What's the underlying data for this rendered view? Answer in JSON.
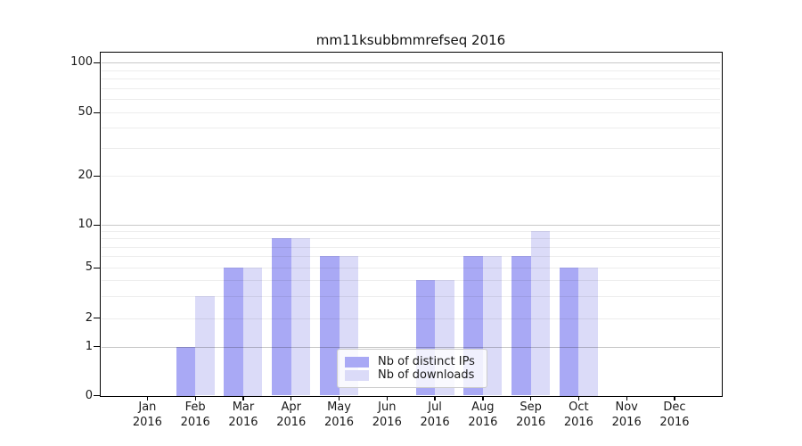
{
  "title": "mm11ksubbmmrefseq 2016",
  "chart_data": {
    "type": "bar",
    "title": "mm11ksubbmmrefseq 2016",
    "x_axis": {
      "year": "2016",
      "months": [
        "Jan",
        "Feb",
        "Mar",
        "Apr",
        "May",
        "Jun",
        "Jul",
        "Aug",
        "Sep",
        "Oct",
        "Nov",
        "Dec"
      ]
    },
    "y_axis": {
      "scale": "log-like",
      "ticks": [
        100,
        50,
        20,
        10,
        5,
        2,
        1,
        0
      ],
      "ylim": [
        0,
        115
      ]
    },
    "grid": {
      "major": [
        1,
        10,
        100
      ],
      "minor": [
        2,
        3,
        4,
        5,
        6,
        7,
        8,
        9,
        20,
        30,
        40,
        50,
        60,
        70,
        80,
        90
      ]
    },
    "series": [
      {
        "name": "Nb of distinct IPs",
        "color": "#a9a9f5",
        "values": [
          0,
          1,
          5,
          8,
          6,
          0,
          4,
          6,
          6,
          5,
          0,
          0
        ]
      },
      {
        "name": "Nb of downloads",
        "color": "#dbdbf8",
        "values": [
          0,
          3,
          5,
          8,
          6,
          0,
          4,
          6,
          9,
          5,
          0,
          0
        ]
      }
    ],
    "legend_position": "bottom-center"
  }
}
